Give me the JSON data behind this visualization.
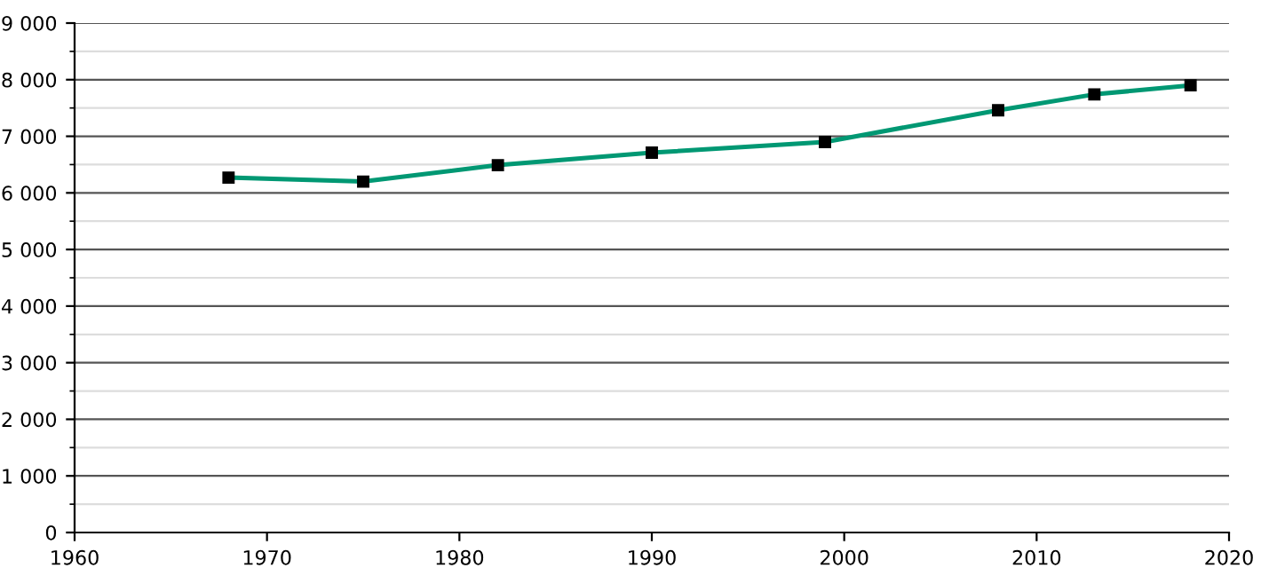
{
  "chart_data": {
    "type": "line",
    "x": [
      1968,
      1975,
      1982,
      1990,
      1999,
      2008,
      2013,
      2018
    ],
    "series": [
      {
        "color": "#009873",
        "values": [
          6270,
          6200,
          6490,
          6710,
          6900,
          7460,
          7740,
          7900
        ]
      }
    ],
    "xlim": [
      1960,
      2020
    ],
    "xticks": [
      1960,
      1970,
      1980,
      1990,
      2000,
      2010,
      2020
    ],
    "ylim": [
      0,
      9000
    ],
    "yticks": [
      {
        "value": 0,
        "label": "0"
      },
      {
        "value": 500,
        "label": null
      },
      {
        "value": 1000,
        "label": "1 000"
      },
      {
        "value": 1500,
        "label": null
      },
      {
        "value": 2000,
        "label": "2 000"
      },
      {
        "value": 2500,
        "label": null
      },
      {
        "value": 3000,
        "label": "3 000"
      },
      {
        "value": 3500,
        "label": null
      },
      {
        "value": 4000,
        "label": "4 000"
      },
      {
        "value": 4500,
        "label": null
      },
      {
        "value": 5000,
        "label": "5 000"
      },
      {
        "value": 5500,
        "label": null
      },
      {
        "value": 6000,
        "label": "6 000"
      },
      {
        "value": 6500,
        "label": null
      },
      {
        "value": 7000,
        "label": "7 000"
      },
      {
        "value": 7500,
        "label": null
      },
      {
        "value": 8000,
        "label": "8 000"
      },
      {
        "value": 8500,
        "label": null
      },
      {
        "value": 9000,
        "label": "9 000"
      }
    ],
    "grid": "y",
    "marker": "square",
    "line_style": "solid"
  }
}
